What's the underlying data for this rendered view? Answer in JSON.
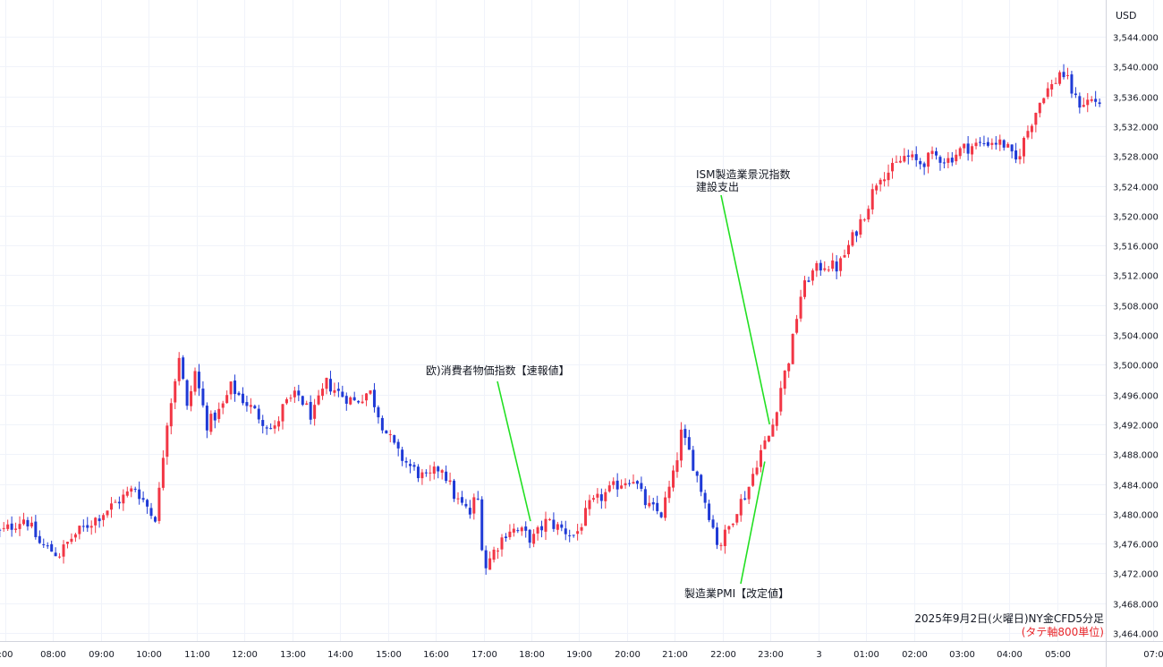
{
  "chart_data": {
    "type": "candlestick",
    "currency": "USD",
    "caption_line1": "2025年9月2日(火曜日)NY金CFD5分足",
    "caption_line2": "(タテ軸800単位)",
    "ylim": [
      3463,
      3546
    ],
    "y_ticks": [
      "3,544.000",
      "3,540.000",
      "3,536.000",
      "3,532.000",
      "3,528.000",
      "3,524.000",
      "3,520.000",
      "3,516.000",
      "3,512.000",
      "3,508.000",
      "3,504.000",
      "3,500.000",
      "3,496.000",
      "3,492.000",
      "3,488.000",
      "3,484.000",
      "3,480.000",
      "3,476.000",
      "3,472.000",
      "3,468.000",
      "3,464.000"
    ],
    "y_tick_values": [
      3544,
      3540,
      3536,
      3532,
      3528,
      3524,
      3520,
      3516,
      3512,
      3508,
      3504,
      3500,
      3496,
      3492,
      3488,
      3484,
      3480,
      3476,
      3472,
      3468,
      3464
    ],
    "x_ticks": [
      ":00",
      "08:00",
      "09:00",
      "10:00",
      "11:00",
      "12:00",
      "13:00",
      "14:00",
      "15:00",
      "16:00",
      "17:00",
      "18:00",
      "19:00",
      "20:00",
      "21:00",
      "22:00",
      "23:00",
      "3",
      "01:00",
      "02:00",
      "03:00",
      "04:00",
      "05:00",
      "07:0"
    ],
    "x_tick_hours": [
      7,
      8,
      9,
      10,
      11,
      12,
      13,
      14,
      15,
      16,
      17,
      18,
      19,
      20,
      21,
      22,
      23,
      24,
      25,
      26,
      27,
      28,
      29,
      31
    ],
    "price_path": [
      [
        7.0,
        3477.5
      ],
      [
        7.5,
        3479.5
      ],
      [
        7.8,
        3476.0
      ],
      [
        8.2,
        3474.5
      ],
      [
        8.5,
        3477.0
      ],
      [
        9.0,
        3479.5
      ],
      [
        9.4,
        3481.5
      ],
      [
        9.8,
        3483.5
      ],
      [
        10.1,
        3480.5
      ],
      [
        10.2,
        3479.0
      ],
      [
        10.3,
        3483.0
      ],
      [
        10.45,
        3492.0
      ],
      [
        10.6,
        3497.0
      ],
      [
        10.75,
        3502.5
      ],
      [
        10.85,
        3493.0
      ],
      [
        11.05,
        3499.0
      ],
      [
        11.3,
        3492.0
      ],
      [
        11.6,
        3494.0
      ],
      [
        11.8,
        3497.0
      ],
      [
        12.1,
        3495.0
      ],
      [
        12.4,
        3493.0
      ],
      [
        12.7,
        3491.0
      ],
      [
        12.9,
        3494.5
      ],
      [
        13.2,
        3496.0
      ],
      [
        13.5,
        3493.0
      ],
      [
        13.8,
        3497.5
      ],
      [
        14.1,
        3496.0
      ],
      [
        14.4,
        3495.0
      ],
      [
        14.7,
        3496.5
      ],
      [
        15.0,
        3491.5
      ],
      [
        15.3,
        3488.0
      ],
      [
        15.6,
        3486.0
      ],
      [
        15.9,
        3484.5
      ],
      [
        16.2,
        3486.5
      ],
      [
        16.5,
        3482.0
      ],
      [
        16.8,
        3480.0
      ],
      [
        16.95,
        3483.0
      ],
      [
        17.1,
        3472.5
      ],
      [
        17.3,
        3475.0
      ],
      [
        17.6,
        3478.0
      ],
      [
        17.9,
        3477.5
      ],
      [
        18.1,
        3476.5
      ],
      [
        18.4,
        3479.0
      ],
      [
        18.7,
        3478.0
      ],
      [
        19.0,
        3477.0
      ],
      [
        19.3,
        3481.0
      ],
      [
        19.6,
        3482.5
      ],
      [
        19.9,
        3484.0
      ],
      [
        20.2,
        3485.0
      ],
      [
        20.5,
        3481.0
      ],
      [
        20.8,
        3480.0
      ],
      [
        21.1,
        3486.0
      ],
      [
        21.2,
        3491.0
      ],
      [
        21.4,
        3488.0
      ],
      [
        21.6,
        3484.0
      ],
      [
        21.8,
        3480.0
      ],
      [
        22.0,
        3475.5
      ],
      [
        22.2,
        3478.0
      ],
      [
        22.4,
        3481.0
      ],
      [
        22.6,
        3483.0
      ],
      [
        22.85,
        3488.0
      ],
      [
        23.1,
        3491.0
      ],
      [
        23.3,
        3497.0
      ],
      [
        23.5,
        3501.5
      ],
      [
        23.7,
        3509.0
      ],
      [
        23.9,
        3512.0
      ],
      [
        24.2,
        3513.5
      ],
      [
        24.5,
        3513.0
      ],
      [
        24.8,
        3517.0
      ],
      [
        25.1,
        3521.0
      ],
      [
        25.35,
        3525.5
      ],
      [
        25.6,
        3526.0
      ],
      [
        25.9,
        3528.0
      ],
      [
        26.2,
        3527.0
      ],
      [
        26.5,
        3528.0
      ],
      [
        26.8,
        3527.5
      ],
      [
        27.1,
        3529.0
      ],
      [
        27.4,
        3529.5
      ],
      [
        27.7,
        3530.0
      ],
      [
        28.0,
        3529.5
      ],
      [
        28.2,
        3527.0
      ],
      [
        28.5,
        3532.0
      ],
      [
        28.8,
        3536.5
      ],
      [
        29.0,
        3537.5
      ],
      [
        29.15,
        3539.5
      ],
      [
        29.3,
        3538.0
      ],
      [
        29.5,
        3535.0
      ],
      [
        29.8,
        3535.5
      ],
      [
        30.1,
        3535.0
      ],
      [
        30.4,
        3535.5
      ],
      [
        30.6,
        3534.0
      ],
      [
        30.9,
        3533.0
      ],
      [
        31.1,
        3533.5
      ]
    ],
    "up_color": "#f23645",
    "down_color": "#1f3ad6",
    "annotations": [
      {
        "lines": [
          "欧)消費者物価指数【速報値】"
        ],
        "target_hour": 18.0,
        "target_price": 3479.0
      },
      {
        "lines": [
          "ISM製造業景況指数",
          "建設支出"
        ],
        "target_hour": 23.0,
        "target_price": 3492.0
      },
      {
        "lines": [
          "製造業PMI【改定値】"
        ],
        "target_hour": 22.9,
        "target_price": 3487.0
      }
    ],
    "annotation_line_color": "#22e022"
  }
}
